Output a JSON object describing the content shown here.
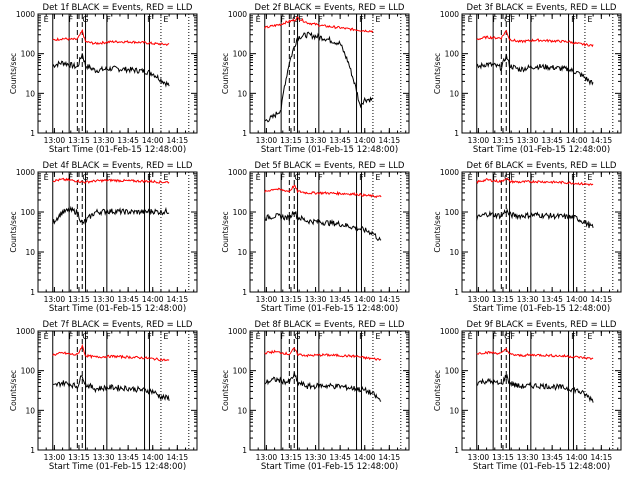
{
  "figure": {
    "time_ticks": [
      "13:00",
      "13:15",
      "13:30",
      "13:45",
      "14:00",
      "14:15"
    ],
    "y_ticks": [
      "1",
      "10",
      "100",
      "1000"
    ],
    "line_colors": {
      "events": "#000000",
      "lld": "#ff0000",
      "axes": "#000000"
    }
  },
  "chart_data": [
    {
      "type": "line",
      "detector": "1f",
      "title": "Det 1f BLACK = Events, RED = LLD",
      "xlabel": "Start Time (01-Feb-15 12:48:00)",
      "ylabel": "Counts/sec",
      "ylim": [
        1,
        1000
      ],
      "y_scale": "log",
      "x_ticks": [
        "13:00",
        "13:15",
        "13:30",
        "13:45",
        "14:00",
        "14:15"
      ],
      "x": [
        "12:59",
        "13:05",
        "13:10",
        "13:14",
        "13:17",
        "13:19",
        "13:25",
        "13:35",
        "13:45",
        "13:55",
        "14:00",
        "14:05",
        "14:10"
      ],
      "series": [
        {
          "name": "BLACK = Events",
          "values": [
            50,
            60,
            52,
            45,
            100,
            50,
            38,
            42,
            40,
            36,
            32,
            22,
            16
          ]
        },
        {
          "name": "RED = LLD",
          "values": [
            220,
            240,
            230,
            230,
            370,
            200,
            180,
            200,
            200,
            190,
            180,
            175,
            170
          ]
        }
      ],
      "interval_marks": [
        "E",
        "F",
        "G",
        "F",
        "F",
        "E"
      ]
    },
    {
      "type": "line",
      "detector": "2f",
      "title": "Det 2f BLACK = Events, RED = LLD",
      "xlabel": "Start Time (01-Feb-15 12:48:00)",
      "ylabel": "Counts/sec",
      "ylim": [
        1,
        1000
      ],
      "y_scale": "log",
      "x_ticks": [
        "13:00",
        "13:15",
        "13:30",
        "13:45",
        "14:00",
        "14:15"
      ],
      "x": [
        "12:59",
        "13:04",
        "13:09",
        "13:11",
        "13:14",
        "13:17",
        "13:19",
        "13:25",
        "13:35",
        "13:45",
        "13:50",
        "13:55",
        "13:57",
        "14:00",
        "14:05"
      ],
      "series": [
        {
          "name": "BLACK = Events",
          "values": [
            2,
            2.5,
            4,
            15,
            60,
            150,
            260,
            300,
            250,
            180,
            60,
            12,
            5,
            7,
            7
          ]
        },
        {
          "name": "RED = LLD",
          "values": [
            450,
            500,
            550,
            600,
            650,
            700,
            800,
            600,
            500,
            450,
            420,
            400,
            390,
            380,
            370
          ]
        }
      ],
      "interval_marks": [
        "E",
        "F",
        "GF",
        "F",
        "F",
        "E"
      ]
    },
    {
      "type": "line",
      "detector": "3f",
      "title": "Det 3f BLACK = Events, RED = LLD",
      "xlabel": "Start Time (01-Feb-15 12:48:00)",
      "ylabel": "Counts/sec",
      "ylim": [
        1,
        1000
      ],
      "y_scale": "log",
      "x_ticks": [
        "13:00",
        "13:15",
        "13:30",
        "13:45",
        "14:00",
        "14:15"
      ],
      "x": [
        "12:59",
        "13:05",
        "13:10",
        "13:14",
        "13:17",
        "13:19",
        "13:25",
        "13:35",
        "13:45",
        "13:55",
        "14:00",
        "14:05",
        "14:10"
      ],
      "series": [
        {
          "name": "BLACK = Events",
          "values": [
            45,
            55,
            50,
            44,
            90,
            50,
            40,
            48,
            45,
            40,
            34,
            25,
            17
          ]
        },
        {
          "name": "RED = LLD",
          "values": [
            230,
            260,
            250,
            250,
            380,
            230,
            200,
            220,
            210,
            200,
            180,
            170,
            160
          ]
        }
      ],
      "interval_marks": [
        "E",
        "F",
        "GF",
        "F",
        "F",
        "E"
      ]
    },
    {
      "type": "line",
      "detector": "4f",
      "title": "Det 4f BLACK = Events, RED = LLD",
      "xlabel": "Start Time (01-Feb-15 12:48:00)",
      "ylabel": "Counts/sec",
      "ylim": [
        1,
        1000
      ],
      "y_scale": "log",
      "x_ticks": [
        "13:00",
        "13:15",
        "13:30",
        "13:45",
        "14:00",
        "14:15"
      ],
      "x": [
        "12:59",
        "13:05",
        "13:10",
        "13:14",
        "13:17",
        "13:19",
        "13:25",
        "13:35",
        "13:45",
        "13:55",
        "14:00",
        "14:05",
        "14:10"
      ],
      "series": [
        {
          "name": "BLACK = Events",
          "values": [
            55,
            100,
            110,
            100,
            50,
            60,
            100,
            105,
            100,
            100,
            105,
            100,
            105
          ]
        },
        {
          "name": "RED = LLD",
          "values": [
            600,
            650,
            620,
            600,
            560,
            560,
            600,
            620,
            600,
            590,
            580,
            560,
            560
          ]
        }
      ],
      "interval_marks": [
        "E",
        "F",
        "G",
        "F",
        "F",
        "E"
      ]
    },
    {
      "type": "line",
      "detector": "5f",
      "title": "Det 5f BLACK = Events, RED = LLD",
      "xlabel": "Start Time (01-Feb-15 12:48:00)",
      "ylabel": "Counts/sec",
      "ylim": [
        1,
        1000
      ],
      "y_scale": "log",
      "x_ticks": [
        "13:00",
        "13:15",
        "13:30",
        "13:45",
        "14:00",
        "14:15"
      ],
      "x": [
        "12:59",
        "13:05",
        "13:10",
        "13:14",
        "13:17",
        "13:19",
        "13:25",
        "13:35",
        "13:45",
        "13:55",
        "14:00",
        "14:05",
        "14:10"
      ],
      "series": [
        {
          "name": "BLACK = Events",
          "values": [
            70,
            80,
            75,
            70,
            110,
            75,
            60,
            55,
            50,
            40,
            35,
            30,
            18
          ]
        },
        {
          "name": "RED = LLD",
          "values": [
            320,
            380,
            350,
            330,
            460,
            330,
            300,
            300,
            290,
            280,
            260,
            250,
            240
          ]
        }
      ],
      "interval_marks": [
        "E",
        "F",
        "G",
        "F",
        "F",
        "E"
      ]
    },
    {
      "type": "line",
      "detector": "6f",
      "title": "Det 6f BLACK = Events, RED = LLD",
      "xlabel": "Start Time (01-Feb-15 12:48:00)",
      "ylabel": "Counts/sec",
      "ylim": [
        1,
        1000
      ],
      "y_scale": "log",
      "x_ticks": [
        "13:00",
        "13:15",
        "13:30",
        "13:45",
        "14:00",
        "14:15"
      ],
      "x": [
        "12:59",
        "13:05",
        "13:10",
        "13:14",
        "13:17",
        "13:19",
        "13:25",
        "13:35",
        "13:45",
        "13:55",
        "14:00",
        "14:05",
        "14:10"
      ],
      "series": [
        {
          "name": "BLACK = Events",
          "values": [
            70,
            90,
            85,
            80,
            110,
            85,
            80,
            85,
            80,
            75,
            70,
            55,
            40
          ]
        },
        {
          "name": "RED = LLD",
          "values": [
            560,
            640,
            600,
            580,
            700,
            580,
            560,
            580,
            560,
            540,
            520,
            500,
            480
          ]
        }
      ],
      "interval_marks": [
        "E",
        "F",
        "GF",
        "F",
        "F",
        "E"
      ]
    },
    {
      "type": "line",
      "detector": "7f",
      "title": "Det 7f BLACK = Events, RED = LLD",
      "xlabel": "Start Time (01-Feb-15 12:48:00)",
      "ylabel": "Counts/sec",
      "ylim": [
        1,
        1000
      ],
      "y_scale": "log",
      "x_ticks": [
        "13:00",
        "13:15",
        "13:30",
        "13:45",
        "14:00",
        "14:15"
      ],
      "x": [
        "12:59",
        "13:05",
        "13:10",
        "13:14",
        "13:17",
        "13:19",
        "13:25",
        "13:35",
        "13:45",
        "13:55",
        "14:00",
        "14:05",
        "14:10"
      ],
      "series": [
        {
          "name": "BLACK = Events",
          "values": [
            40,
            50,
            45,
            40,
            80,
            45,
            35,
            38,
            36,
            32,
            30,
            22,
            20
          ]
        },
        {
          "name": "RED = LLD",
          "values": [
            250,
            280,
            260,
            250,
            420,
            240,
            220,
            230,
            220,
            210,
            200,
            190,
            180
          ]
        }
      ],
      "interval_marks": [
        "E",
        "F",
        "G",
        "F",
        "F",
        "E"
      ]
    },
    {
      "type": "line",
      "detector": "8f",
      "title": "Det 8f BLACK = Events, RED = LLD",
      "xlabel": "Start Time (01-Feb-15 12:48:00)",
      "ylabel": "Counts/sec",
      "ylim": [
        1,
        1000
      ],
      "y_scale": "log",
      "x_ticks": [
        "13:00",
        "13:15",
        "13:30",
        "13:45",
        "14:00",
        "14:15"
      ],
      "x": [
        "12:59",
        "13:05",
        "13:10",
        "13:14",
        "13:17",
        "13:19",
        "13:25",
        "13:35",
        "13:45",
        "13:55",
        "14:00",
        "14:05",
        "14:10"
      ],
      "series": [
        {
          "name": "BLACK = Events",
          "values": [
            50,
            60,
            55,
            50,
            80,
            50,
            40,
            42,
            40,
            35,
            32,
            26,
            17
          ]
        },
        {
          "name": "RED = LLD",
          "values": [
            280,
            300,
            280,
            260,
            360,
            260,
            240,
            250,
            240,
            230,
            210,
            200,
            190
          ]
        }
      ],
      "interval_marks": [
        "E",
        "F",
        "G",
        "F",
        "F",
        "E"
      ]
    },
    {
      "type": "line",
      "detector": "9f",
      "title": "Det 9f BLACK = Events, RED = LLD",
      "xlabel": "Start Time (01-Feb-15 12:48:00)",
      "ylabel": "Counts/sec",
      "ylim": [
        1,
        1000
      ],
      "y_scale": "log",
      "x_ticks": [
        "13:00",
        "13:15",
        "13:30",
        "13:45",
        "14:00",
        "14:15"
      ],
      "x": [
        "12:59",
        "13:05",
        "13:10",
        "13:14",
        "13:17",
        "13:19",
        "13:25",
        "13:35",
        "13:45",
        "13:55",
        "14:00",
        "14:05",
        "14:10"
      ],
      "series": [
        {
          "name": "BLACK = Events",
          "values": [
            50,
            55,
            50,
            45,
            75,
            50,
            40,
            42,
            40,
            36,
            32,
            25,
            18
          ]
        },
        {
          "name": "RED = LLD",
          "values": [
            270,
            290,
            280,
            270,
            360,
            260,
            240,
            250,
            240,
            230,
            220,
            210,
            200
          ]
        }
      ],
      "interval_marks": [
        "E",
        "F",
        "GF",
        "F",
        "F",
        "E"
      ]
    }
  ]
}
